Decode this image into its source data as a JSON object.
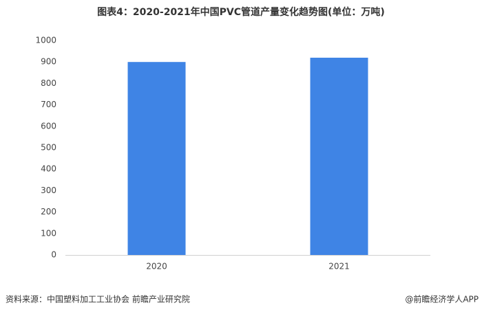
{
  "chart_data": {
    "type": "bar",
    "title": "图表4：2020-2021年中国PVC管道产量变化趋势图(单位：万吨)",
    "categories": [
      "2020",
      "2021"
    ],
    "values": [
      900,
      920
    ],
    "color": "#3f84e5",
    "ylim": [
      0,
      1000
    ],
    "yticks": [
      0,
      100,
      200,
      300,
      400,
      500,
      600,
      700,
      800,
      900,
      1000
    ],
    "grid": false,
    "source": "资料来源：中国塑料加工工业协会 前瞻产业研究院",
    "credit": "@前瞻经济学人APP"
  }
}
